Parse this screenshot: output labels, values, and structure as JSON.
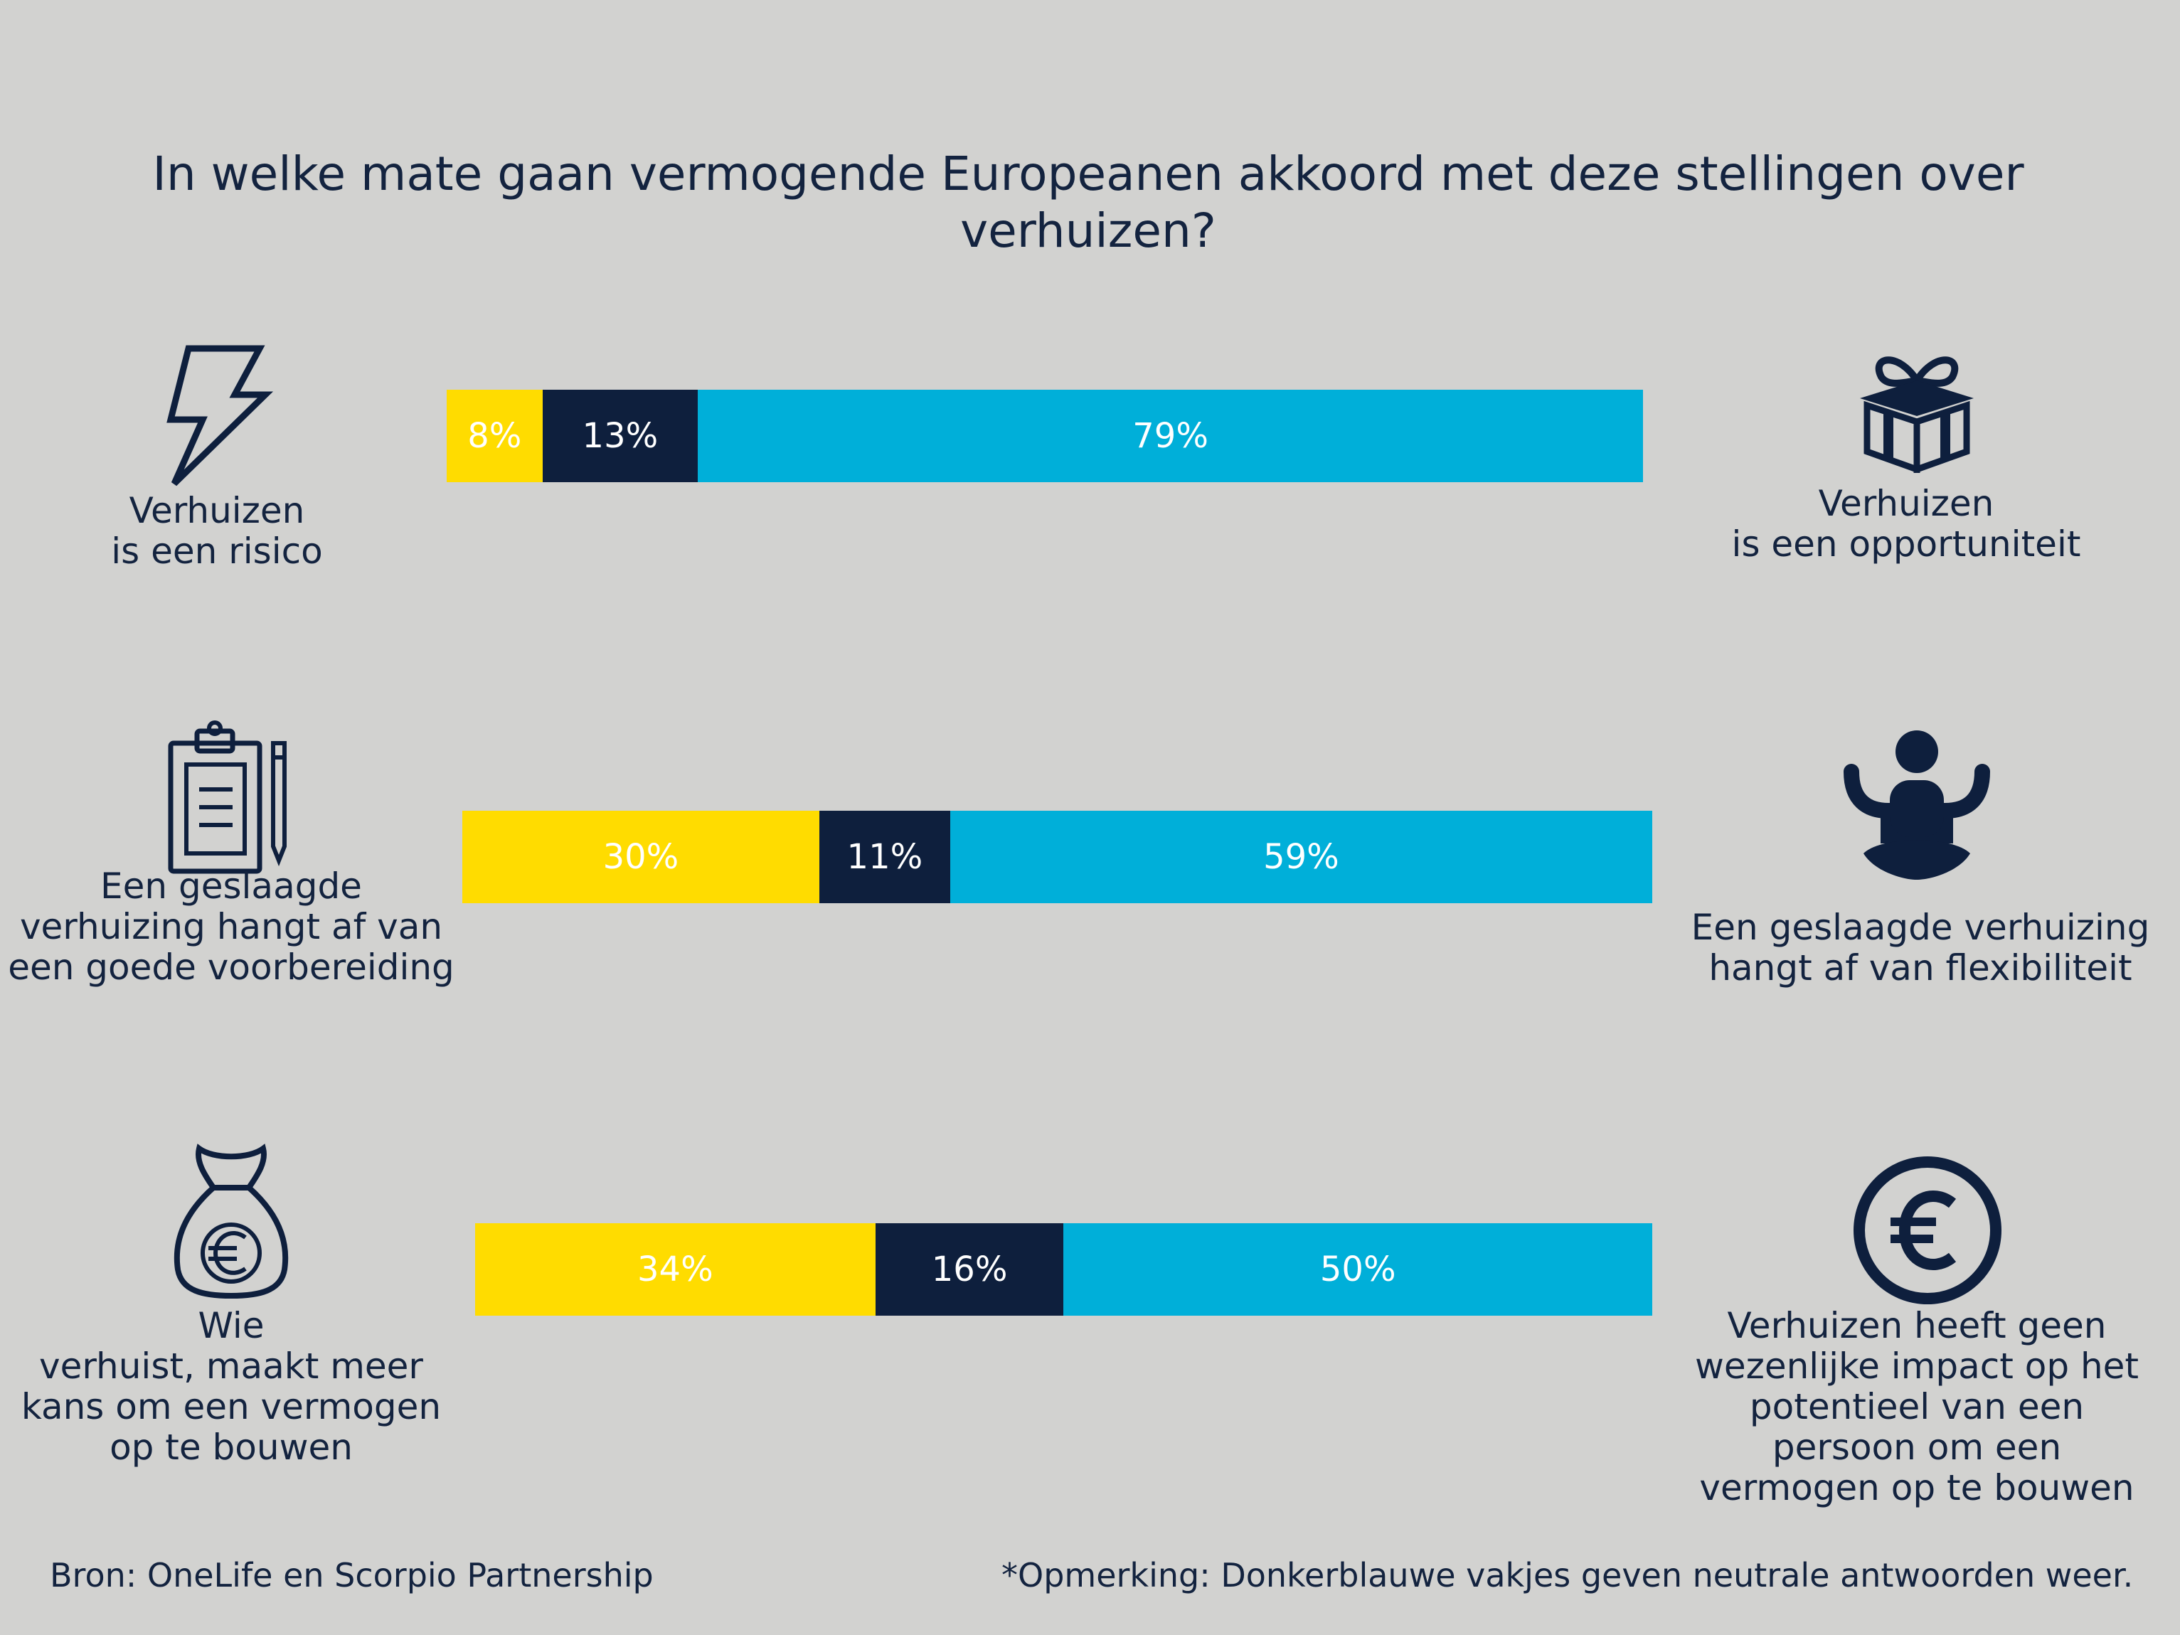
{
  "title_lines": [
    "In welke mate gaan vermogende Europeanen akkoord met deze stellingen over",
    "verhuizen?"
  ],
  "colors": {
    "left": "#ffdc00",
    "neutral": "#0e1f3d",
    "right": "#00afd9",
    "text": "#13233f",
    "background": "#d2d2d0"
  },
  "rows": [
    {
      "left_label": [
        "Verhuizen",
        "is een risico"
      ],
      "left_icon": "lightning-icon",
      "right_label": [
        "Verhuizen",
        "is een opportuniteit"
      ],
      "right_icon": "gift-icon",
      "values": [
        "8%",
        "13%",
        "79%"
      ]
    },
    {
      "left_label": [
        "Een geslaagde",
        "verhuizing hangt af van",
        "een goede voorbereiding"
      ],
      "left_icon": "clipboard-icon",
      "right_label": [
        "Een geslaagde verhuizing",
        "hangt af van flexibiliteit"
      ],
      "right_icon": "meditation-icon",
      "values": [
        "30%",
        "11%",
        "59%"
      ]
    },
    {
      "left_label": [
        "Wie",
        "verhuist, maakt meer",
        "kans om een vermogen",
        "op te bouwen"
      ],
      "left_icon": "money-bag-euro-icon",
      "right_label": [
        "Verhuizen heeft geen",
        "wezenlijke impact op het",
        "potentieel van een",
        "persoon om een",
        "vermogen op te bouwen"
      ],
      "right_icon": "euro-coin-icon",
      "values": [
        "34%",
        "16%",
        "50%"
      ]
    }
  ],
  "chart_data": {
    "type": "bar",
    "stacked": true,
    "orientation": "horizontal",
    "title": "In welke mate gaan vermogende Europeanen akkoord met deze stellingen over verhuizen?",
    "categories": [
      "Verhuizen is een risico / Verhuizen is een opportuniteit",
      "Een geslaagde verhuizing hangt af van een goede voorbereiding / Een geslaagde verhuizing hangt af van flexibiliteit",
      "Wie verhuist, maakt meer kans om een vermogen op te bouwen / Verhuizen heeft geen wezenlijke impact op het potentieel van een persoon om een vermogen op te bouwen"
    ],
    "series": [
      {
        "values": [
          8,
          30,
          34
        ],
        "color": "#ffdc00"
      },
      {
        "values": [
          13,
          11,
          16
        ],
        "color": "#0e1f3d"
      },
      {
        "values": [
          79,
          59,
          50
        ],
        "color": "#00afd9"
      }
    ],
    "xlim": [
      0,
      100
    ],
    "grid": false
  },
  "footer": {
    "source": "Bron: OneLife en Scorpio Partnership",
    "note": "*Opmerking: Donkerblauwe vakjes geven neutrale antwoorden weer."
  }
}
